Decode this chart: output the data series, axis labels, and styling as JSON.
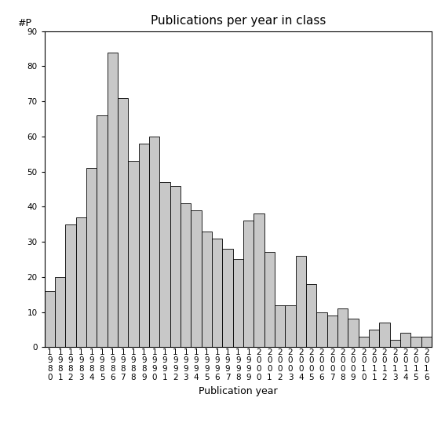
{
  "title": "Publications per year in class",
  "xlabel": "Publication year",
  "ylabel_label": "#P",
  "bar_color": "#c8c8c8",
  "bar_edge_color": "#000000",
  "years": [
    1980,
    1981,
    1982,
    1983,
    1984,
    1985,
    1986,
    1987,
    1988,
    1989,
    1990,
    1991,
    1992,
    1993,
    1994,
    1995,
    1996,
    1997,
    1998,
    1999,
    2000,
    2001,
    2002,
    2003,
    2004,
    2005,
    2006,
    2007,
    2008,
    2009,
    2010,
    2011,
    2012,
    2013,
    2014,
    2015,
    2016
  ],
  "values": [
    16,
    20,
    35,
    37,
    51,
    66,
    84,
    71,
    53,
    58,
    60,
    47,
    46,
    41,
    39,
    33,
    31,
    28,
    25,
    36,
    38,
    27,
    12,
    12,
    26,
    18,
    10,
    9,
    11,
    8,
    3,
    5,
    7,
    2,
    4,
    3,
    3
  ],
  "ylim": [
    0,
    90
  ],
  "yticks": [
    0,
    10,
    20,
    30,
    40,
    50,
    60,
    70,
    80,
    90
  ],
  "background_color": "#ffffff",
  "title_fontsize": 11,
  "axis_fontsize": 9,
  "tick_fontsize": 7.5
}
